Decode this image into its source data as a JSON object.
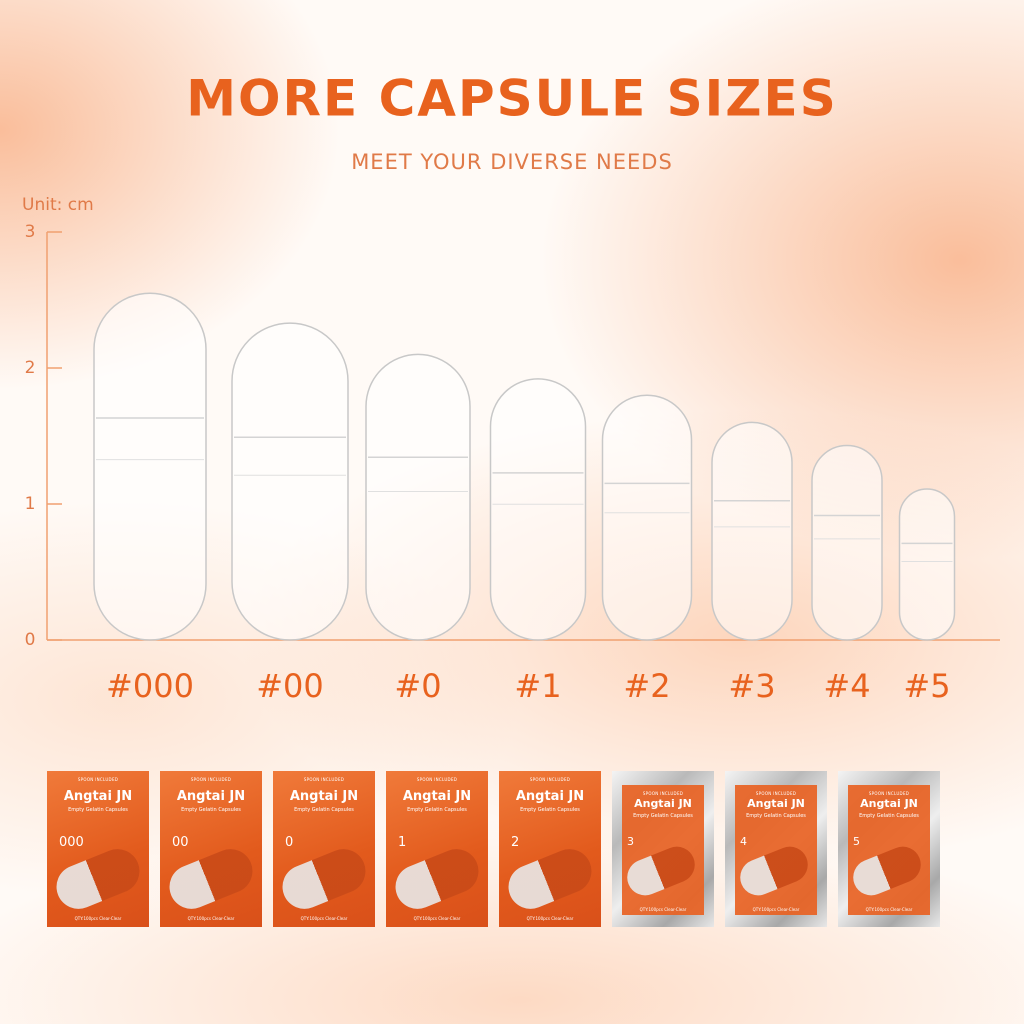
{
  "chart_data": {
    "type": "capsule",
    "title": "MORE CAPSULE SIZES",
    "subtitle": "MEET YOUR DIVERSE NEEDS",
    "y_label": "Unit: cm",
    "categories": [
      "#000",
      "#00",
      "#0",
      "#1",
      "#2",
      "#3",
      "#4",
      "#5"
    ],
    "values": [
      2.55,
      2.33,
      2.1,
      1.92,
      1.8,
      1.6,
      1.43,
      1.11
    ],
    "ylim": [
      0,
      3
    ],
    "yticks": [
      0,
      1,
      2,
      3
    ],
    "color": "#e8621e"
  },
  "packages": {
    "brand": "Angtai JN",
    "subtitle": "Empty Gelatin Capsules",
    "note": "SPOON INCLUDED",
    "qty": "QTY:100pcs Clear-Clear",
    "items": [
      {
        "size": "000",
        "style": "orange"
      },
      {
        "size": "00",
        "style": "orange"
      },
      {
        "size": "0",
        "style": "orange"
      },
      {
        "size": "1",
        "style": "orange"
      },
      {
        "size": "2",
        "style": "orange"
      },
      {
        "size": "3",
        "style": "silver"
      },
      {
        "size": "4",
        "style": "silver"
      },
      {
        "size": "5",
        "style": "silver"
      }
    ]
  }
}
